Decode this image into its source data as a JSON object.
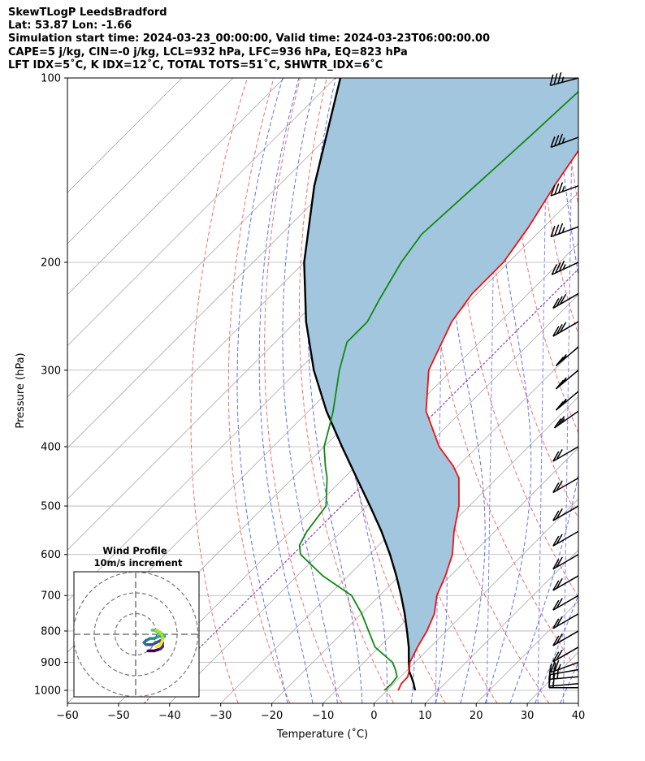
{
  "header": {
    "line1": "SkewTLogP LeedsBradford",
    "line2": "Lat: 53.87   Lon: -1.66",
    "line3": "Simulation start time: 2024-03-23_00:00:00, Valid time: 2024-03-23T06:00:00.00",
    "line4": "CAPE=5 j/kg, CIN=-0 j/kg, LCL=932 hPa, LFC=936 hPa, EQ=823 hPa",
    "line5": "LFT IDX=5˚C, K IDX=12˚C, TOTAL TOTS=51˚C, SHWTR_IDX=6˚C"
  },
  "chart_data": [
    {
      "type": "line",
      "subtype": "skew-t log-p",
      "xlabel": "Temperature (˚C)",
      "ylabel": "Pressure (hPa)",
      "xlim": [
        -60,
        40
      ],
      "ylim": [
        1050,
        100
      ],
      "y_scale": "log",
      "skew": 45,
      "x_ticks": [
        -60,
        -50,
        -40,
        -30,
        -20,
        -10,
        0,
        10,
        20,
        30,
        40
      ],
      "x_tick_labels": [
        "−60",
        "−50",
        "−40",
        "−30",
        "−20",
        "−10",
        "0",
        "10",
        "20",
        "30",
        "40"
      ],
      "y_ticks": [
        1000,
        900,
        800,
        700,
        600,
        500,
        400,
        300,
        200,
        100
      ],
      "y_tick_labels": [
        "1000",
        "900",
        "800",
        "700",
        "600",
        "500",
        "400",
        "300",
        "200",
        "100"
      ],
      "grid": true,
      "colors": {
        "temperature": "#ee1111",
        "dewpoint": "#118811",
        "parcel": "#000000",
        "cape_fill": "#a3c6df",
        "dry_adiabat": "#f07070",
        "moist_adiabat": "#6070ee",
        "mixing_ratio": "#8080ff",
        "isotherm_0": "#9040c0",
        "skew_isotherm": "#aaaaaa"
      },
      "series": [
        {
          "key": "temperature",
          "pressure": [
            1000,
            975,
            950,
            925,
            900,
            850,
            800,
            750,
            700,
            650,
            600,
            550,
            500,
            450,
            430,
            400,
            350,
            300,
            250,
            225,
            200,
            175,
            150,
            125,
            100
          ],
          "temperature": [
            2.2,
            1.5,
            1.4,
            0.3,
            -1.0,
            -2.5,
            -3.8,
            -5.7,
            -8.8,
            -11.0,
            -13.8,
            -18.0,
            -22.0,
            -27.5,
            -31.0,
            -37.5,
            -47.0,
            -54.5,
            -59.5,
            -61.0,
            -61.0,
            -63.0,
            -66.0,
            -69.0,
            -73.5
          ]
        },
        {
          "key": "dewpoint",
          "pressure": [
            1000,
            975,
            950,
            925,
            900,
            850,
            800,
            750,
            700,
            650,
            600,
            580,
            550,
            500,
            450,
            430,
            400,
            370,
            350,
            300,
            270,
            250,
            230,
            200,
            180,
            150,
            125,
            100
          ],
          "temperature": [
            -0.5,
            -0.4,
            -0.7,
            -2.4,
            -4.4,
            -10.8,
            -15.2,
            -19.9,
            -25.5,
            -35.0,
            -43.5,
            -45.5,
            -46.8,
            -48.0,
            -53.3,
            -56.0,
            -60.0,
            -63.0,
            -65.2,
            -72.0,
            -76.0,
            -76.0,
            -78.0,
            -81.0,
            -82.5,
            -81.5,
            -80.5,
            -79.5
          ]
        },
        {
          "key": "parcel",
          "pressure": [
            1000,
            975,
            950,
            932,
            925,
            900,
            850,
            800,
            750,
            700,
            650,
            600,
            550,
            500,
            450,
            400,
            350,
            300,
            250,
            200,
            150,
            100
          ],
          "temperature": [
            5.5,
            3.9,
            2.1,
            0.7,
            0.3,
            -1.2,
            -4.2,
            -7.7,
            -11.5,
            -15.8,
            -20.6,
            -26.0,
            -32.2,
            -39.4,
            -47.5,
            -56.5,
            -66.5,
            -77.0,
            -88.0,
            -100.0,
            -113.0,
            -129.0
          ]
        }
      ],
      "wind_barbs": {
        "levels_hpa": [
          990,
          975,
          950,
          925,
          900,
          850,
          800,
          750,
          700,
          650,
          600,
          550,
          500,
          450,
          400,
          350,
          325,
          300,
          275,
          250,
          225,
          200,
          175,
          150,
          125,
          100
        ],
        "speed_kt": [
          15,
          20,
          25,
          25,
          25,
          20,
          20,
          20,
          20,
          20,
          20,
          20,
          20,
          20,
          20,
          25,
          25,
          25,
          25,
          30,
          30,
          35,
          35,
          35,
          35,
          35
        ],
        "direction_deg": [
          270,
          275,
          275,
          280,
          290,
          300,
          300,
          300,
          300,
          300,
          300,
          300,
          300,
          300,
          300,
          305,
          310,
          310,
          310,
          300,
          300,
          295,
          290,
          290,
          290,
          285
        ]
      }
    },
    {
      "type": "scatter",
      "subtype": "hodograph",
      "title": "Wind Profile",
      "subtitle": "10m/s increment",
      "ring_speeds": [
        10,
        20,
        30
      ],
      "colormap": "viridis",
      "u": [
        6,
        9,
        12,
        13,
        13,
        12,
        10,
        8,
        5,
        4,
        5,
        7,
        9,
        11,
        14,
        13,
        11,
        9,
        8,
        10,
        12,
        13,
        13,
        12,
        10
      ],
      "v": [
        -8,
        -8,
        -7,
        -6,
        -4,
        -3,
        -4,
        -5,
        -5,
        -4,
        -3,
        -2,
        -2,
        -1,
        -1,
        0,
        1,
        2,
        2,
        2,
        1,
        -1,
        -3,
        -5,
        -6
      ]
    }
  ]
}
